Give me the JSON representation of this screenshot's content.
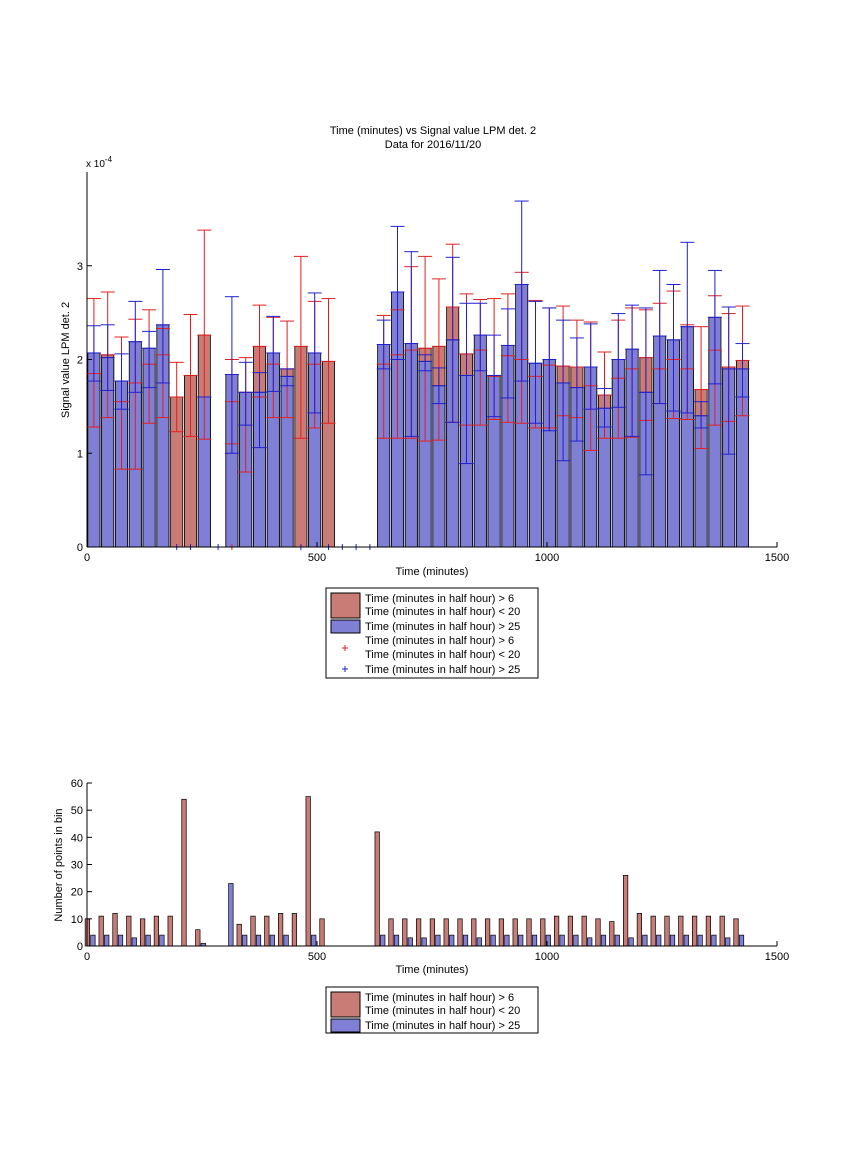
{
  "colors": {
    "red_bar": "#c97b76",
    "blue_bar": "#7f7fd5",
    "red_err": "#e02020",
    "blue_err": "#2020d0"
  },
  "legend_top": {
    "entries": [
      {
        "kind": "red-bar",
        "lines": [
          "Time (minutes in half hour) > 6",
          "Time (minutes in half hour) < 20"
        ]
      },
      {
        "kind": "blue-bar",
        "lines": [
          "Time (minutes in half hour) > 25"
        ]
      },
      {
        "kind": "red-plus",
        "lines": [
          "Time (minutes in half hour) > 6",
          "Time (minutes in half hour) < 20"
        ]
      },
      {
        "kind": "blue-plus",
        "lines": [
          "Time (minutes in half hour) > 25"
        ]
      }
    ]
  },
  "legend_bottom": {
    "entries": [
      {
        "kind": "red-bar",
        "lines": [
          "Time (minutes in half hour) > 6",
          "Time (minutes in half hour) < 20"
        ]
      },
      {
        "kind": "blue-bar",
        "lines": [
          "Time (minutes in half hour) > 25"
        ]
      }
    ]
  },
  "chart_data": [
    {
      "type": "bar",
      "title": "Time (minutes) vs Signal value LPM det. 2",
      "subtitle": "Data for 2016/11/20",
      "xlabel": "Time (minutes)",
      "ylabel": "Signal value LPM det. 2",
      "y_exponent": "x 10",
      "y_exponent_power": "-4",
      "xlim": [
        0,
        1500
      ],
      "ylim": [
        0,
        4
      ],
      "xticks": [
        "0",
        "500",
        "1000",
        "1500"
      ],
      "yticks": [
        "0",
        "1",
        "2",
        "3"
      ],
      "bin_width": 30,
      "series": [
        {
          "color": "red",
          "x": [
            15,
            45,
            75,
            105,
            135,
            165,
            195,
            225,
            255,
            315,
            345,
            375,
            405,
            435,
            465,
            495,
            525,
            645,
            675,
            705,
            735,
            765,
            795,
            825,
            855,
            885,
            915,
            945,
            975,
            1005,
            1035,
            1065,
            1095,
            1125,
            1155,
            1185,
            1215,
            1245,
            1275,
            1305,
            1335,
            1365,
            1395,
            1425
          ],
          "values": [
            1.85,
            2.05,
            1.55,
            1.75,
            1.95,
            2.05,
            1.6,
            1.83,
            2.26,
            1.55,
            1.65,
            2.14,
            1.95,
            1.9,
            2.14,
            1.95,
            1.98,
            1.95,
            2.05,
            2.1,
            2.12,
            2.14,
            2.56,
            2.06,
            2.1,
            1.82,
            2.04,
            2.0,
            1.82,
            1.94,
            1.93,
            1.92,
            1.72,
            1.62,
            1.8,
            1.9,
            2.02,
            1.9,
            2.0,
            1.9,
            1.68,
            2.1,
            1.92,
            1.99
          ],
          "err_low": [
            1.28,
            1.38,
            0.83,
            0.83,
            1.32,
            1.38,
            1.23,
            1.18,
            1.15,
            1.1,
            0.8,
            1.6,
            1.38,
            1.38,
            1.16,
            1.27,
            1.32,
            1.16,
            1.16,
            1.16,
            1.13,
            1.14,
            1.33,
            1.3,
            1.3,
            1.36,
            1.33,
            1.32,
            1.27,
            1.27,
            1.4,
            1.38,
            1.03,
            1.16,
            1.16,
            1.17,
            1.35,
            1.53,
            1.37,
            1.36,
            1.05,
            1.3,
            1.34,
            1.4
          ],
          "err_high": [
            2.65,
            2.72,
            2.24,
            2.43,
            2.53,
            2.33,
            1.97,
            2.48,
            3.38,
            2.0,
            2.02,
            2.58,
            2.45,
            2.41,
            3.1,
            2.62,
            2.65,
            2.47,
            2.53,
            2.99,
            3.1,
            2.86,
            3.23,
            2.7,
            2.64,
            2.65,
            2.7,
            2.93,
            2.63,
            2.55,
            2.57,
            2.42,
            2.4,
            2.08,
            2.42,
            2.55,
            2.53,
            2.6,
            2.73,
            2.37,
            2.35,
            2.68,
            2.49,
            2.57
          ]
        },
        {
          "color": "blue",
          "x": [
            15,
            45,
            75,
            105,
            135,
            165,
            255,
            315,
            345,
            375,
            405,
            435,
            495,
            645,
            675,
            705,
            735,
            765,
            795,
            825,
            855,
            885,
            915,
            945,
            975,
            1005,
            1035,
            1065,
            1095,
            1125,
            1155,
            1185,
            1215,
            1245,
            1275,
            1305,
            1335,
            1365,
            1395,
            1425
          ],
          "values": [
            2.07,
            2.02,
            1.77,
            2.19,
            2.12,
            2.37,
            1.6,
            1.84,
            1.65,
            1.65,
            2.07,
            1.82,
            2.07,
            2.16,
            2.72,
            2.17,
            1.98,
            1.72,
            2.21,
            1.83,
            2.26,
            1.83,
            2.15,
            2.8,
            1.96,
            2.0,
            1.75,
            1.7,
            1.92,
            1.48,
            2.0,
            2.11,
            1.65,
            2.25,
            2.21,
            2.35,
            1.4,
            2.45,
            1.9,
            1.9
          ],
          "err_low": [
            1.77,
            1.67,
            1.47,
            1.65,
            1.7,
            1.75,
            1.6,
            1.0,
            1.3,
            1.06,
            1.66,
            1.72,
            1.43,
            1.9,
            2.0,
            1.18,
            1.88,
            1.53,
            1.33,
            0.89,
            1.88,
            1.39,
            1.59,
            1.77,
            1.32,
            1.24,
            0.92,
            1.13,
            1.47,
            1.28,
            1.49,
            1.18,
            0.77,
            1.53,
            1.45,
            1.43,
            1.27,
            1.74,
            0.99,
            1.6
          ],
          "err_high": [
            2.36,
            2.37,
            2.06,
            2.62,
            2.3,
            2.96,
            1.6,
            2.67,
            1.97,
            1.86,
            2.46,
            1.9,
            2.71,
            2.42,
            3.42,
            3.15,
            2.05,
            1.91,
            3.09,
            2.6,
            2.6,
            2.26,
            2.54,
            3.69,
            2.62,
            2.55,
            2.42,
            2.23,
            2.38,
            1.69,
            2.49,
            2.58,
            2.55,
            2.95,
            2.8,
            3.25,
            1.55,
            2.95,
            2.56,
            2.17
          ]
        },
        {
          "color": "red",
          "type": "scatter",
          "x": [
            315
          ],
          "values": [
            0
          ]
        },
        {
          "color": "blue",
          "type": "scatter",
          "x": [
            195,
            225,
            285,
            465,
            525,
            555,
            585,
            615
          ],
          "values": [
            0,
            0,
            0,
            0,
            0,
            0,
            0,
            0
          ]
        }
      ]
    },
    {
      "type": "bar",
      "xlabel": "Time (minutes)",
      "ylabel": "Number of points in bin",
      "xlim": [
        0,
        1500
      ],
      "ylim": [
        0,
        60
      ],
      "xticks": [
        "0",
        "500",
        "1000",
        "1500"
      ],
      "yticks": [
        "0",
        "10",
        "20",
        "30",
        "40",
        "50",
        "60"
      ],
      "series": [
        {
          "color": "red",
          "x": [
            15,
            45,
            75,
            105,
            135,
            165,
            195,
            225,
            255,
            345,
            375,
            405,
            435,
            465,
            495,
            525,
            645,
            675,
            705,
            735,
            765,
            795,
            825,
            855,
            885,
            915,
            945,
            975,
            1005,
            1035,
            1065,
            1095,
            1125,
            1155,
            1185,
            1215,
            1245,
            1275,
            1305,
            1335,
            1365,
            1395,
            1425
          ],
          "values": [
            10,
            11,
            12,
            11,
            10,
            11,
            11,
            54,
            6,
            8,
            11,
            11,
            12,
            12,
            55,
            10,
            42,
            10,
            10,
            10,
            10,
            10,
            10,
            10,
            10,
            10,
            10,
            10,
            10,
            11,
            11,
            11,
            10,
            9,
            26,
            12,
            11,
            11,
            11,
            11,
            11,
            11,
            10
          ]
        },
        {
          "color": "blue",
          "x": [
            15,
            45,
            75,
            105,
            135,
            165,
            255,
            315,
            345,
            375,
            405,
            435,
            495,
            645,
            675,
            705,
            735,
            765,
            795,
            825,
            855,
            885,
            915,
            945,
            975,
            1005,
            1035,
            1065,
            1095,
            1125,
            1155,
            1185,
            1215,
            1245,
            1275,
            1305,
            1335,
            1365,
            1395,
            1425
          ],
          "values": [
            4,
            4,
            4,
            3,
            4,
            4,
            1,
            23,
            4,
            4,
            4,
            4,
            4,
            4,
            4,
            3,
            3,
            4,
            4,
            4,
            3,
            4,
            4,
            4,
            4,
            4,
            4,
            4,
            3,
            4,
            4,
            3,
            4,
            4,
            4,
            4,
            4,
            4,
            3,
            4
          ]
        }
      ]
    }
  ]
}
